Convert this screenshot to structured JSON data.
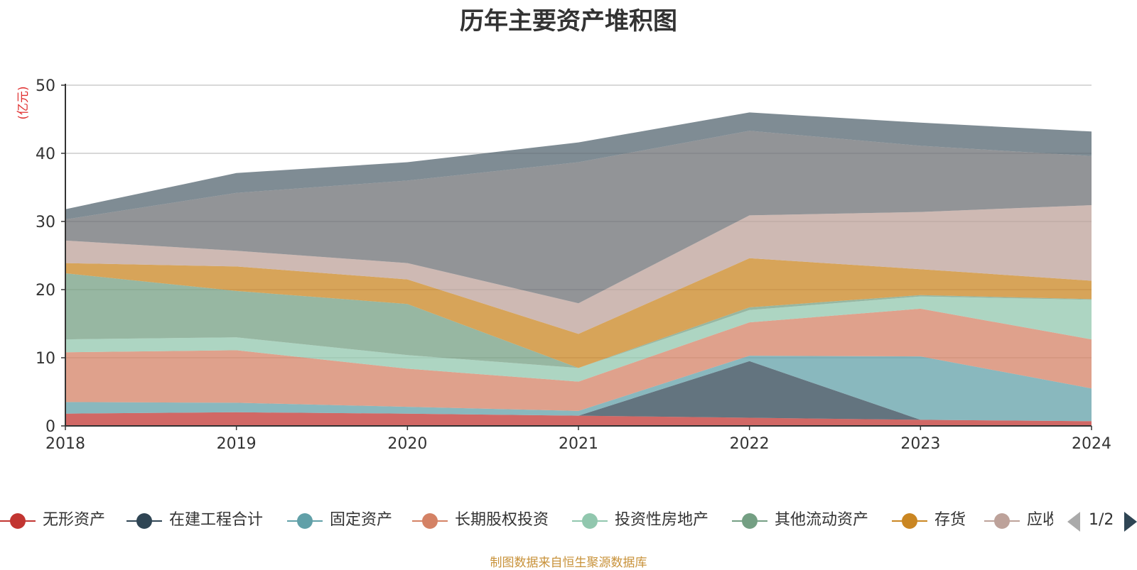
{
  "chart_data": {
    "type": "area",
    "stacked": true,
    "title": "历年主要资产堆积图",
    "ylabel": "(亿元)",
    "xlabel": "",
    "ylim": [
      0,
      50
    ],
    "yticks": [
      "0",
      "10",
      "20",
      "30",
      "40",
      "50"
    ],
    "categories": [
      "2018",
      "2019",
      "2020",
      "2021",
      "2022",
      "2023",
      "2024"
    ],
    "grid": true,
    "legend_position": "bottom",
    "series": [
      {
        "name": "无形资产",
        "color": "#c23531",
        "values": [
          1.8,
          2.0,
          1.8,
          1.5,
          1.2,
          0.9,
          0.7
        ]
      },
      {
        "name": "在建工程合计",
        "color": "#2f4554",
        "values": [
          0.0,
          0.0,
          0.0,
          0.0,
          8.3,
          0.0,
          0.0
        ]
      },
      {
        "name": "固定资产",
        "color": "#61a0a8",
        "values": [
          1.7,
          1.4,
          1.0,
          0.7,
          0.8,
          9.3,
          4.8
        ]
      },
      {
        "name": "长期股权投资",
        "color": "#d48265",
        "values": [
          7.3,
          7.7,
          5.6,
          4.3,
          4.9,
          7.0,
          7.2
        ]
      },
      {
        "name": "投资性房地产",
        "color": "#91c7ae",
        "values": [
          1.9,
          1.9,
          2.0,
          2.0,
          1.8,
          1.8,
          5.8
        ]
      },
      {
        "name": "其他流动资产",
        "color": "#749f83",
        "values": [
          9.7,
          6.8,
          7.5,
          0.0,
          0.4,
          0.2,
          0.1
        ]
      },
      {
        "name": "存货",
        "color": "#ca8622",
        "values": [
          1.5,
          3.6,
          3.6,
          5.0,
          7.2,
          3.8,
          2.7
        ]
      },
      {
        "name": "应收",
        "color": "#bda29a",
        "values": [
          3.3,
          2.3,
          2.4,
          4.5,
          6.3,
          8.4,
          11.1
        ]
      },
      {
        "name": "",
        "color": "#6e7074",
        "values": [
          3.1,
          8.5,
          12.1,
          20.7,
          12.4,
          9.7,
          7.2
        ]
      },
      {
        "name": "",
        "color": "#546570",
        "values": [
          1.5,
          2.9,
          2.7,
          2.9,
          2.7,
          3.4,
          3.6
        ]
      }
    ]
  },
  "pager": {
    "text": "1/2"
  },
  "source_note": "制图数据来自恒生聚源数据库"
}
